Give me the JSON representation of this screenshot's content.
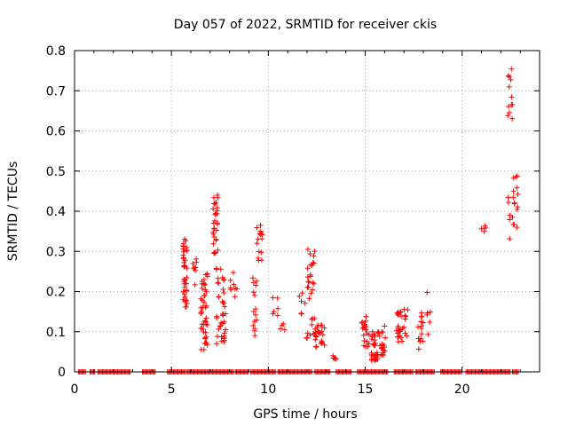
{
  "chart_data": {
    "type": "scatter",
    "title": "Day 057 of 2022, SRMTID for receiver ckis",
    "xlabel": "GPS time / hours",
    "ylabel": "SRMTID / TECUs",
    "xlim": [
      0,
      24
    ],
    "ylim": [
      0,
      0.8
    ],
    "x_ticks": [
      "0",
      "5",
      "10",
      "15",
      "20"
    ],
    "y_ticks": [
      "0",
      "0.1",
      "0.2",
      "0.3",
      "0.4",
      "0.5",
      "0.6",
      "0.7",
      "0.8"
    ],
    "grid": true,
    "marker": "+",
    "marker_color": "#ff0000",
    "series": [
      {
        "name": "SRMTID",
        "clusters": [
          {
            "x": [
              5.6,
              5.8
            ],
            "y": [
              0.16,
              0.34
            ],
            "n": 40
          },
          {
            "x": [
              6.1,
              6.3
            ],
            "y": [
              0.19,
              0.31
            ],
            "n": 8
          },
          {
            "x": [
              6.5,
              6.9
            ],
            "y": [
              0.05,
              0.25
            ],
            "n": 45
          },
          {
            "x": [
              7.1,
              7.4
            ],
            "y": [
              0.29,
              0.45
            ],
            "n": 30
          },
          {
            "x": [
              7.3,
              7.8
            ],
            "y": [
              0.07,
              0.26
            ],
            "n": 40
          },
          {
            "x": [
              8.0,
              8.4
            ],
            "y": [
              0.18,
              0.26
            ],
            "n": 8
          },
          {
            "x": [
              9.2,
              9.4
            ],
            "y": [
              0.09,
              0.24
            ],
            "n": 15
          },
          {
            "x": [
              9.4,
              9.7
            ],
            "y": [
              0.26,
              0.37
            ],
            "n": 15
          },
          {
            "x": [
              10.2,
              10.5
            ],
            "y": [
              0.14,
              0.19
            ],
            "n": 6
          },
          {
            "x": [
              10.6,
              10.9
            ],
            "y": [
              0.09,
              0.12
            ],
            "n": 4
          },
          {
            "x": [
              11.6,
              11.9
            ],
            "y": [
              0.13,
              0.2
            ],
            "n": 6
          },
          {
            "x": [
              11.9,
              12.4
            ],
            "y": [
              0.08,
              0.31
            ],
            "n": 30
          },
          {
            "x": [
              12.4,
              12.9
            ],
            "y": [
              0.06,
              0.12
            ],
            "n": 25
          },
          {
            "x": [
              13.2,
              13.6
            ],
            "y": [
              0.02,
              0.06
            ],
            "n": 5
          },
          {
            "x": [
              14.8,
              15.2
            ],
            "y": [
              0.05,
              0.14
            ],
            "n": 20
          },
          {
            "x": [
              15.3,
              15.7
            ],
            "y": [
              0.02,
              0.1
            ],
            "n": 30
          },
          {
            "x": [
              15.7,
              16.1
            ],
            "y": [
              0.04,
              0.12
            ],
            "n": 20
          },
          {
            "x": [
              16.6,
              17.2
            ],
            "y": [
              0.07,
              0.16
            ],
            "n": 30
          },
          {
            "x": [
              17.7,
              18.0
            ],
            "y": [
              0.05,
              0.15
            ],
            "n": 15
          },
          {
            "x": [
              18.0,
              18.4
            ],
            "y": [
              0.09,
              0.2
            ],
            "n": 6
          },
          {
            "x": [
              21.0,
              21.3
            ],
            "y": [
              0.33,
              0.39
            ],
            "n": 4
          },
          {
            "x": [
              22.3,
              22.6
            ],
            "y": [
              0.63,
              0.76
            ],
            "n": 12
          },
          {
            "x": [
              22.3,
              22.9
            ],
            "y": [
              0.31,
              0.49
            ],
            "n": 20
          }
        ],
        "zero_ranges": [
          [
            0.2,
            0.6
          ],
          [
            0.8,
            1.1
          ],
          [
            1.2,
            2.9
          ],
          [
            3.5,
            4.2
          ],
          [
            4.8,
            5.7
          ],
          [
            5.8,
            8.2
          ],
          [
            8.3,
            9.0
          ],
          [
            9.1,
            10.4
          ],
          [
            10.5,
            12.3
          ],
          [
            12.4,
            13.2
          ],
          [
            13.5,
            14.3
          ],
          [
            14.6,
            16.2
          ],
          [
            16.5,
            17.5
          ],
          [
            17.6,
            18.6
          ],
          [
            18.9,
            20.0
          ],
          [
            20.2,
            22.5
          ],
          [
            22.6,
            22.9
          ]
        ]
      }
    ]
  }
}
